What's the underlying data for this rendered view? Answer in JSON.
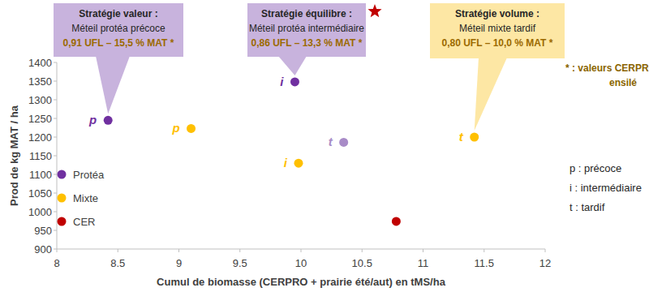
{
  "chart_data": {
    "type": "scatter",
    "x_label": "Cumul de biomasse (CERPRO + prairie été/aut) en tMS/ha",
    "y_label": "Prod de kg  MAT / ha",
    "xlim": [
      8,
      12
    ],
    "ylim": [
      900,
      1400
    ],
    "xticks": [
      8,
      8.5,
      9,
      9.5,
      10,
      10.5,
      11,
      11.5,
      12
    ],
    "yticks": [
      900,
      950,
      1000,
      1050,
      1100,
      1150,
      1200,
      1250,
      1300,
      1350,
      1400
    ],
    "grid": false,
    "legend": "lower left",
    "marker": "circle",
    "series": [
      {
        "name": "Protéa",
        "color": "#7030a0",
        "colors": [
          "#7030a0",
          "#7030a0",
          "#a88bc7"
        ],
        "x": [
          8.42,
          9.95,
          10.35
        ],
        "values": [
          1245,
          1348,
          1186
        ],
        "point_labels": [
          "p",
          "i",
          "t"
        ]
      },
      {
        "name": "Mixte",
        "color": "#ffc000",
        "x": [
          9.1,
          9.98,
          11.42
        ],
        "values": [
          1223,
          1130,
          1200
        ],
        "point_labels": [
          "p",
          "i",
          "t"
        ]
      },
      {
        "name": "CER",
        "color": "#c00000",
        "x": [
          10.78
        ],
        "values": [
          974
        ]
      }
    ],
    "annotations": [
      {
        "title": "Stratégie valeur :",
        "text": "Méteil protéa précoce",
        "values_text": "0,91 UFL – 15,5 % MAT *",
        "series": "Protéa",
        "point": "p",
        "color": "#c8b3dd"
      },
      {
        "title": "Stratégie équilibre :",
        "text": "Méteil protéa intermédiaire",
        "values_text": "0,86 UFL – 13,3 % MAT *",
        "series": "Protéa",
        "point": "i",
        "color": "#c8b3dd"
      },
      {
        "title": "Stratégie volume  :",
        "text": "Méteil mixte tardif",
        "values_text": "0,80 UFL – 10,0 % MAT *",
        "series": "Mixte",
        "point": "t",
        "color": "#fde7a4"
      }
    ],
    "key": [
      "p : précoce",
      "i : intermédiaire",
      "t : tardif"
    ],
    "footnote": [
      "* : valeurs CERPRO",
      "ensilé"
    ]
  }
}
